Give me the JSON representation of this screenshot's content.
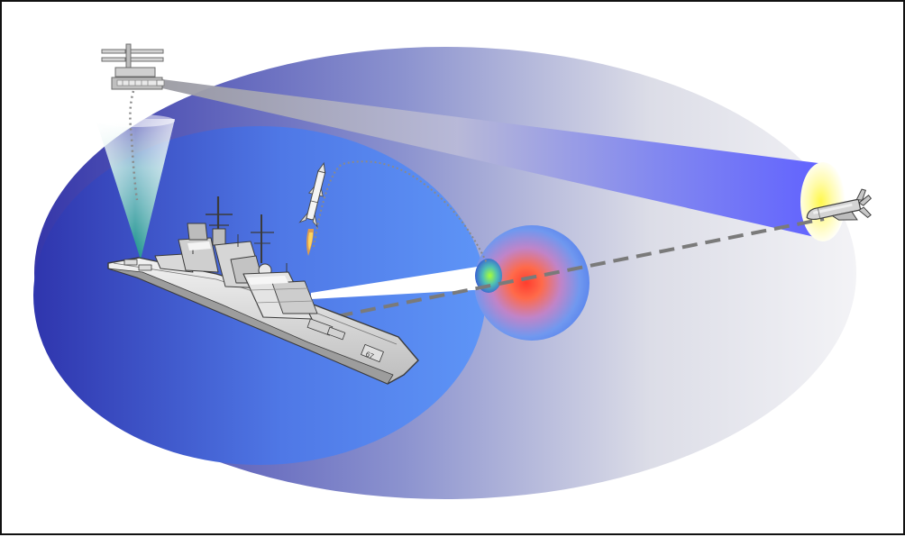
{
  "diagram": {
    "colors": {
      "outer_envelope_start": "#3536a9",
      "outer_envelope_end": "#f3f3f6",
      "inner_envelope_start": "#2f35ad",
      "inner_envelope_end": "#5e95f7",
      "sensor_beam_start": "#8e8e96",
      "sensor_beam_end": "#5a5cff",
      "sensor_cone": "#1aa39b",
      "intercept_core": "#ff4b3a",
      "intercept_halo": "#5d7fe8",
      "target_glow": "#fff34a",
      "track_line": "#7a7a7a",
      "frame_border": "#111111"
    },
    "icons": {
      "aircraft": "airborne-sensor-icon",
      "ship": "warship-icon",
      "interceptor": "interceptor-missile-icon",
      "target": "cruise-missile-icon",
      "kill_zone": "intercept-burst-icon"
    }
  }
}
